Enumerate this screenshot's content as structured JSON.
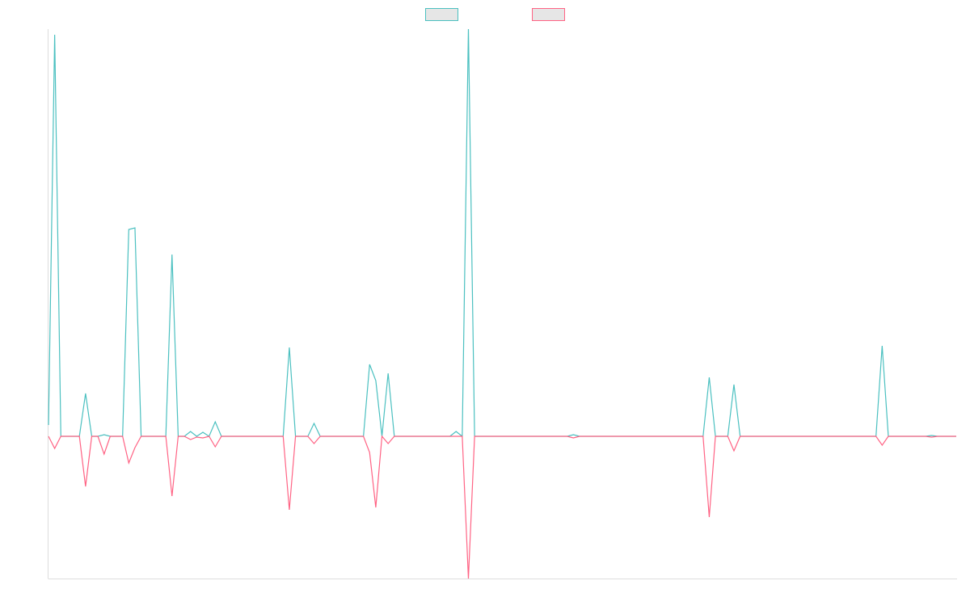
{
  "chart_data": {
    "type": "line",
    "legend": "top",
    "ylim": [
      -176,
      504
    ],
    "series": [
      {
        "color": "#4bc0c0",
        "values": [
          14,
          497,
          0,
          0,
          0,
          0,
          53,
          0,
          0,
          2,
          0,
          0,
          0,
          256,
          258,
          0,
          0,
          0,
          0,
          0,
          225,
          0,
          0,
          6,
          0,
          5,
          0,
          18,
          0,
          0,
          0,
          0,
          0,
          0,
          0,
          0,
          0,
          0,
          0,
          110,
          0,
          0,
          0,
          16,
          0,
          0,
          0,
          0,
          0,
          0,
          0,
          0,
          89,
          69,
          0,
          78,
          0,
          0,
          0,
          0,
          0,
          0,
          0,
          0,
          0,
          0,
          6,
          0,
          504,
          0,
          0,
          0,
          0,
          0,
          0,
          0,
          0,
          0,
          0,
          0,
          0,
          0,
          0,
          0,
          0,
          2,
          0,
          0,
          0,
          0,
          0,
          0,
          0,
          0,
          0,
          0,
          0,
          0,
          0,
          0,
          0,
          0,
          0,
          0,
          0,
          0,
          0,
          73,
          0,
          0,
          0,
          64,
          0,
          0,
          0,
          0,
          0,
          0,
          0,
          0,
          0,
          0,
          0,
          0,
          0,
          0,
          0,
          0,
          0,
          0,
          0,
          0,
          0,
          0,
          0,
          112,
          0,
          0,
          0,
          0,
          0,
          0,
          0,
          1,
          0,
          0,
          0,
          0
        ]
      },
      {
        "color": "#ff6384",
        "values": [
          0,
          -15,
          0,
          0,
          0,
          0,
          -62,
          0,
          0,
          -22,
          0,
          0,
          0,
          -33,
          -14,
          0,
          0,
          0,
          0,
          0,
          -74,
          0,
          0,
          -4,
          -1,
          -2,
          0,
          -13,
          0,
          0,
          0,
          0,
          0,
          0,
          0,
          0,
          0,
          0,
          0,
          -91,
          0,
          0,
          0,
          -9,
          0,
          0,
          0,
          0,
          0,
          0,
          0,
          0,
          -20,
          -88,
          0,
          -9,
          0,
          0,
          0,
          0,
          0,
          0,
          0,
          0,
          0,
          0,
          0,
          0,
          -176,
          0,
          0,
          0,
          0,
          0,
          0,
          0,
          0,
          0,
          0,
          0,
          0,
          0,
          0,
          0,
          0,
          -2,
          0,
          0,
          0,
          0,
          0,
          0,
          0,
          0,
          0,
          0,
          0,
          0,
          0,
          0,
          0,
          0,
          0,
          0,
          0,
          0,
          0,
          -100,
          0,
          0,
          0,
          -18,
          0,
          0,
          0,
          0,
          0,
          0,
          0,
          0,
          0,
          0,
          0,
          0,
          0,
          0,
          0,
          0,
          0,
          0,
          0,
          0,
          0,
          0,
          0,
          -11,
          0,
          0,
          0,
          0,
          0,
          0,
          0,
          -1,
          0,
          0,
          0,
          0
        ]
      }
    ]
  }
}
